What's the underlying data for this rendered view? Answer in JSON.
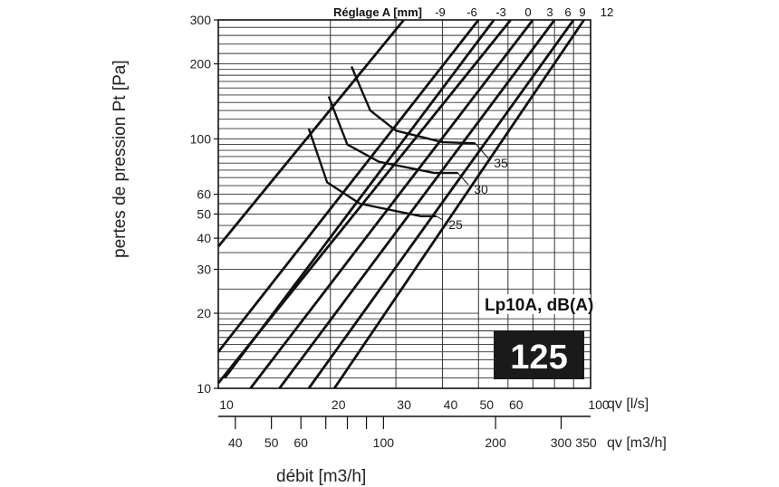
{
  "chart_data": {
    "type": "line",
    "xscale": "log",
    "yscale": "log",
    "grid": true,
    "xlabel": "qv [l/s]",
    "x2label": "qv [m3/h]",
    "ylabel": "pertes de pression  Pt [Pa]",
    "bottom_title": "débit [m3/h]",
    "top_axis_title": "Réglage A [mm]",
    "product_label": "Lp10A, dB(A)",
    "product_code": "125",
    "xlim": [
      10,
      100
    ],
    "ylim": [
      10,
      300
    ],
    "x_ticks": [
      "10",
      "20",
      "30",
      "40",
      "50",
      "60",
      "100"
    ],
    "x_tick_values": [
      10,
      20,
      30,
      40,
      50,
      60,
      100
    ],
    "x2_ticks": [
      "40",
      "50",
      "60",
      "100",
      "200",
      "300",
      "350"
    ],
    "x2_tick_values": [
      40,
      50,
      60,
      100,
      200,
      300,
      350
    ],
    "y_ticks": [
      "10",
      "20",
      "30",
      "40",
      "50",
      "60",
      "100",
      "200",
      "300"
    ],
    "y_tick_values": [
      10,
      20,
      30,
      40,
      50,
      60,
      100,
      200,
      300
    ],
    "top_ticks": [
      "-9",
      "-6",
      "-3",
      "0",
      "3",
      "6",
      "9",
      "12"
    ],
    "series": [
      {
        "points": [
          [
            10,
            37
          ],
          [
            31.5,
            300
          ]
        ]
      },
      {
        "points": [
          [
            10,
            14
          ],
          [
            50,
            300
          ]
        ]
      },
      {
        "points": [
          [
            10.4,
            11
          ],
          [
            55,
            300
          ]
        ]
      },
      {
        "points": [
          [
            10,
            10.5
          ],
          [
            61,
            300
          ]
        ]
      },
      {
        "points": [
          [
            12.2,
            10
          ],
          [
            70,
            300
          ]
        ]
      },
      {
        "points": [
          [
            14.6,
            10
          ],
          [
            80,
            300
          ]
        ]
      },
      {
        "points": [
          [
            17.5,
            10
          ],
          [
            90,
            300
          ]
        ]
      },
      {
        "points": [
          [
            20.5,
            10
          ],
          [
            96,
            300
          ]
        ]
      }
    ],
    "noise_curves": [
      {
        "label": "25",
        "points": [
          [
            17.5,
            110
          ],
          [
            19.6,
            67
          ],
          [
            24,
            55
          ],
          [
            35,
            49
          ],
          [
            38.5,
            49
          ]
        ]
      },
      {
        "label": "30",
        "points": [
          [
            19.8,
            148
          ],
          [
            22.2,
            95
          ],
          [
            27,
            81
          ],
          [
            38,
            73
          ],
          [
            44,
            73
          ]
        ]
      },
      {
        "label": "35",
        "points": [
          [
            22.8,
            195
          ],
          [
            25.6,
            130
          ],
          [
            30,
            108
          ],
          [
            40,
            97
          ],
          [
            49,
            96
          ]
        ]
      }
    ]
  }
}
